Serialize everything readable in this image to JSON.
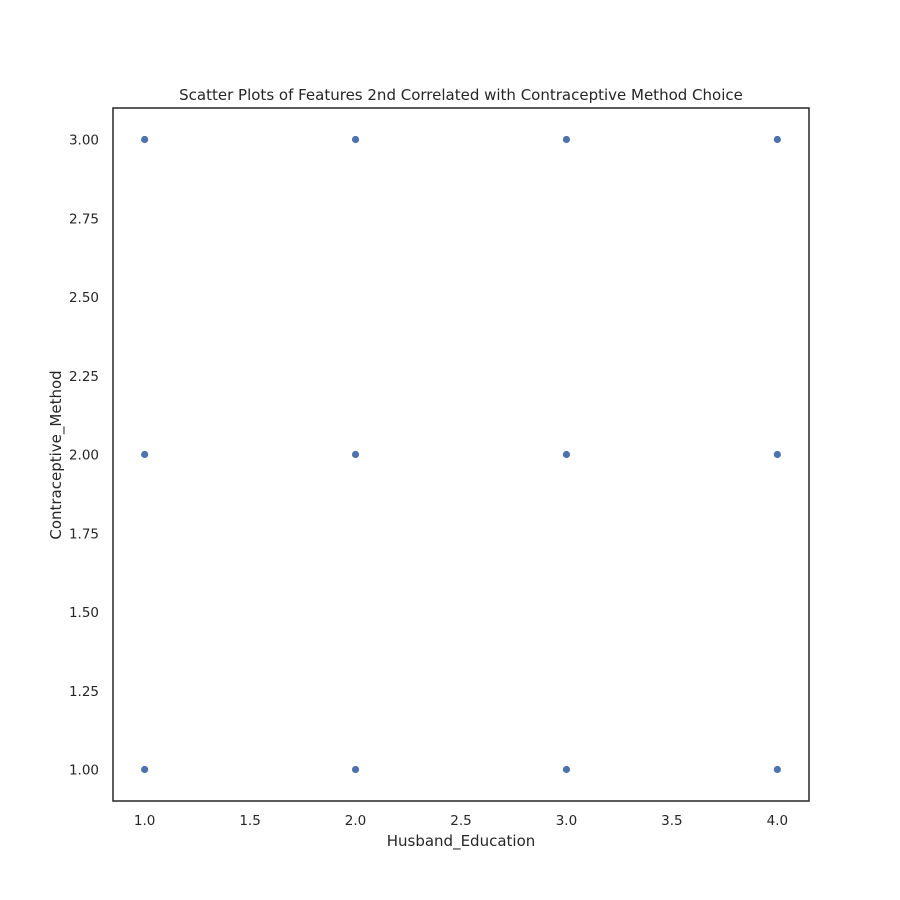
{
  "chart_data": {
    "type": "scatter",
    "title": "Scatter Plots of Features 2nd Correlated with Contraceptive Method Choice",
    "xlabel": "Husband_Education",
    "ylabel": "Contraceptive_Method",
    "xlim": [
      0.85,
      4.15
    ],
    "ylim": [
      0.9,
      3.1
    ],
    "x_ticks": [
      1.0,
      1.5,
      2.0,
      2.5,
      3.0,
      3.5,
      4.0
    ],
    "x_tick_labels": [
      "1.0",
      "1.5",
      "2.0",
      "2.5",
      "3.0",
      "3.5",
      "4.0"
    ],
    "y_ticks": [
      1.0,
      1.25,
      1.5,
      1.75,
      2.0,
      2.25,
      2.5,
      2.75,
      3.0
    ],
    "y_tick_labels": [
      "1.00",
      "1.25",
      "1.50",
      "1.75",
      "2.00",
      "2.25",
      "2.50",
      "2.75",
      "3.00"
    ],
    "grid": false,
    "points": [
      {
        "x": 1,
        "y": 1
      },
      {
        "x": 1,
        "y": 2
      },
      {
        "x": 1,
        "y": 3
      },
      {
        "x": 2,
        "y": 1
      },
      {
        "x": 2,
        "y": 2
      },
      {
        "x": 2,
        "y": 3
      },
      {
        "x": 3,
        "y": 1
      },
      {
        "x": 3,
        "y": 2
      },
      {
        "x": 3,
        "y": 3
      },
      {
        "x": 4,
        "y": 1
      },
      {
        "x": 4,
        "y": 2
      },
      {
        "x": 4,
        "y": 3
      }
    ],
    "marker_color": "#4c72b0",
    "frame_color": "#262626"
  }
}
